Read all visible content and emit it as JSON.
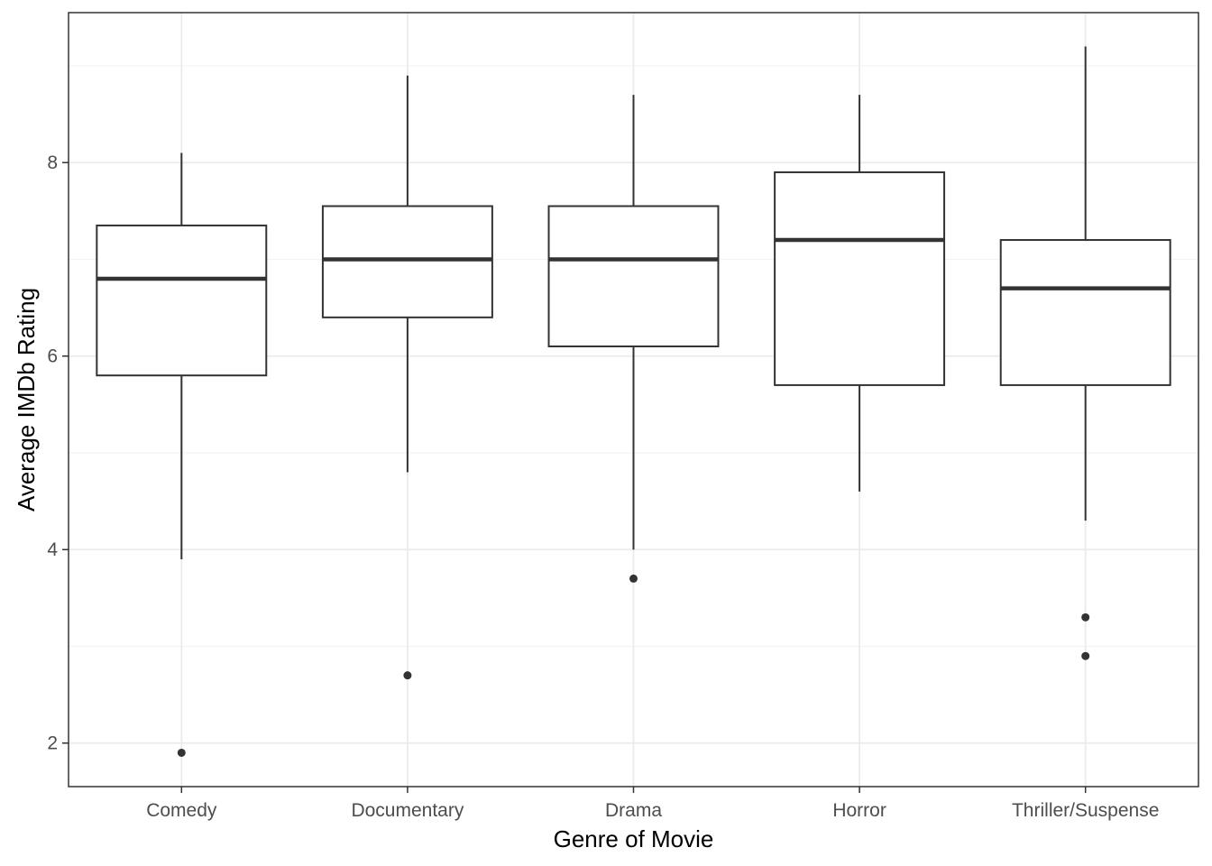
{
  "chart_data": {
    "type": "boxplot",
    "xlabel": "Genre of Movie",
    "ylabel": "Average IMDb Rating",
    "ylim": [
      1.55,
      9.55
    ],
    "yticks": [
      2,
      4,
      6,
      8
    ],
    "grid": true,
    "legend": "none",
    "categories": [
      "Comedy",
      "Documentary",
      "Drama",
      "Horror",
      "Thriller/Suspense"
    ],
    "boxes": [
      {
        "category": "Comedy",
        "whisker_low": 3.9,
        "q1": 5.8,
        "median": 6.8,
        "q3": 7.35,
        "whisker_high": 8.1,
        "outliers": [
          1.9
        ]
      },
      {
        "category": "Documentary",
        "whisker_low": 4.8,
        "q1": 6.4,
        "median": 7.0,
        "q3": 7.55,
        "whisker_high": 8.9,
        "outliers": [
          2.7
        ]
      },
      {
        "category": "Drama",
        "whisker_low": 4.0,
        "q1": 6.1,
        "median": 7.0,
        "q3": 7.55,
        "whisker_high": 8.7,
        "outliers": [
          3.7
        ]
      },
      {
        "category": "Horror",
        "whisker_low": 4.6,
        "q1": 5.7,
        "median": 7.2,
        "q3": 7.9,
        "whisker_high": 8.7,
        "outliers": []
      },
      {
        "category": "Thriller/Suspense",
        "whisker_low": 4.3,
        "q1": 5.7,
        "median": 6.7,
        "q3": 7.2,
        "whisker_high": 9.2,
        "outliers": [
          3.3,
          2.9
        ]
      }
    ],
    "colors": {
      "box_stroke": "#333333",
      "box_fill": "#ffffff",
      "grid_major": "#ebebeb",
      "grid_minor": "#f3f3f3",
      "panel_border": "#333333",
      "tick_text": "#4d4d4d"
    }
  }
}
